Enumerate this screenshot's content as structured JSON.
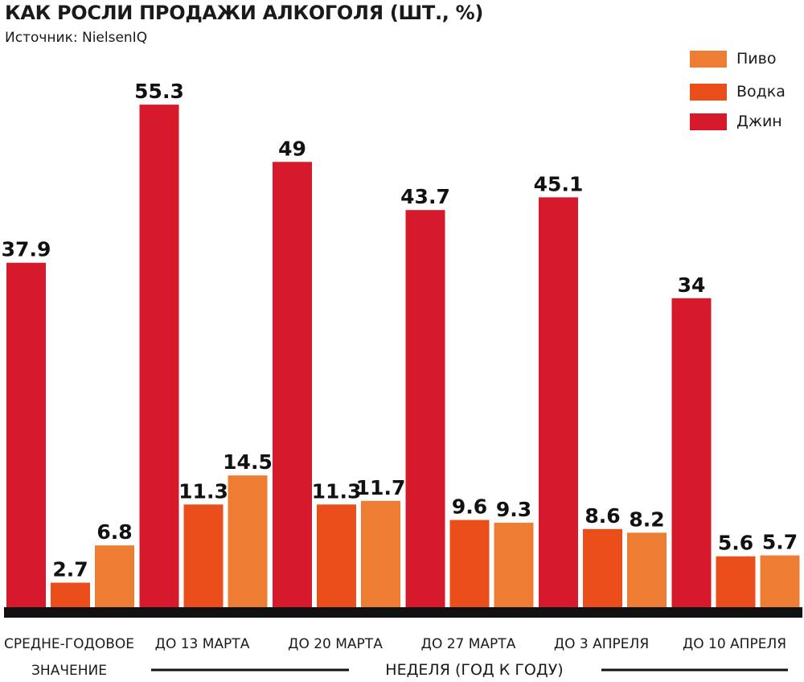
{
  "header": {
    "title": "КАК РОСЛИ ПРОДАЖИ АЛКОГОЛЯ (ШТ., %)",
    "subtitle": "Источник: NielsenIQ"
  },
  "colors": {
    "gin": "#d71a2b",
    "vodka": "#e94e1b",
    "beer": "#ee7d34",
    "baseline": "#111111"
  },
  "chart_data": {
    "type": "bar",
    "categories": [
      [
        "СРЕДНЕ-ГОДОВОЕ",
        "ЗНАЧЕНИЕ"
      ],
      [
        "ДО 13 МАРТА"
      ],
      [
        "ДО 20 МАРТА"
      ],
      [
        "ДО 27 МАРТА"
      ],
      [
        "ДО 3 АПРЕЛЯ"
      ],
      [
        "ДО 10 АПРЕЛЯ"
      ]
    ],
    "series": [
      {
        "name": "Джин",
        "values": [
          37.9,
          55.3,
          49,
          43.7,
          45.1,
          34
        ],
        "labels": [
          "37.9",
          "55.3",
          "49",
          "43.7",
          "45.1",
          "34"
        ]
      },
      {
        "name": "Водка",
        "values": [
          2.7,
          11.3,
          11.3,
          9.6,
          8.6,
          5.6
        ],
        "labels": [
          "2.7",
          "11.3",
          "11.3",
          "9.6",
          "8.6",
          "5.6"
        ]
      },
      {
        "name": "Пиво",
        "values": [
          6.8,
          14.5,
          11.7,
          9.3,
          8.2,
          5.7
        ],
        "labels": [
          "6.8",
          "14.5",
          "11.7",
          "9.3",
          "8.2",
          "5.7"
        ]
      }
    ],
    "legend_order": [
      "Пиво",
      "Водка",
      "Джин"
    ],
    "legend_position": "top-right",
    "axis_caption": "НЕДЕЛЯ (ГОД К ГОДУ)",
    "ylim": [
      0,
      60
    ],
    "grid": false
  }
}
